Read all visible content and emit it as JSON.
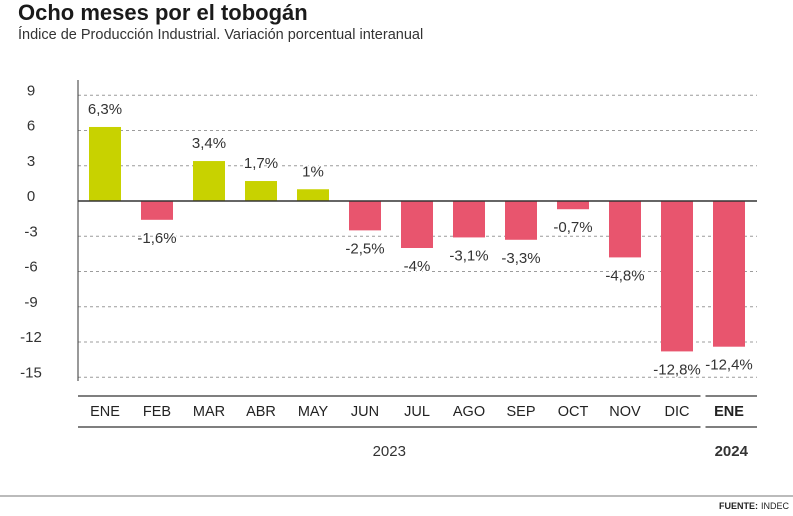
{
  "chart_data": {
    "type": "bar",
    "title": "Ocho meses por el tobogán",
    "subtitle": "Índice de Producción Industrial. Variación porcentual interanual",
    "categories": [
      "ENE",
      "FEB",
      "MAR",
      "ABR",
      "MAY",
      "JUN",
      "JUL",
      "AGO",
      "SEP",
      "OCT",
      "NOV",
      "DIC",
      "ENE"
    ],
    "values": [
      6.3,
      -1.6,
      3.4,
      1.7,
      1.0,
      -2.5,
      -4.0,
      -3.1,
      -3.3,
      -0.7,
      -4.8,
      -12.8,
      -12.4
    ],
    "data_labels": [
      "6,3%",
      "-1,6%",
      "3,4%",
      "1,7%",
      "1%",
      "-2,5%",
      "-4%",
      "-3,1%",
      "-3,3%",
      "-0,7%",
      "-4,8%",
      "-12,8%",
      "-12,4%"
    ],
    "groups": [
      {
        "label": "2023",
        "count": 12,
        "highlight": false
      },
      {
        "label": "2024",
        "count": 1,
        "highlight": true
      }
    ],
    "yticks": [
      9,
      6,
      3,
      0,
      -3,
      -6,
      -9,
      -12,
      -15
    ],
    "ylim": [
      -15,
      9
    ],
    "grid": true,
    "colors": {
      "positive": "#c8d200",
      "negative": "#e8556e"
    }
  },
  "source": {
    "label": "FUENTE:",
    "name": "INDEC"
  }
}
